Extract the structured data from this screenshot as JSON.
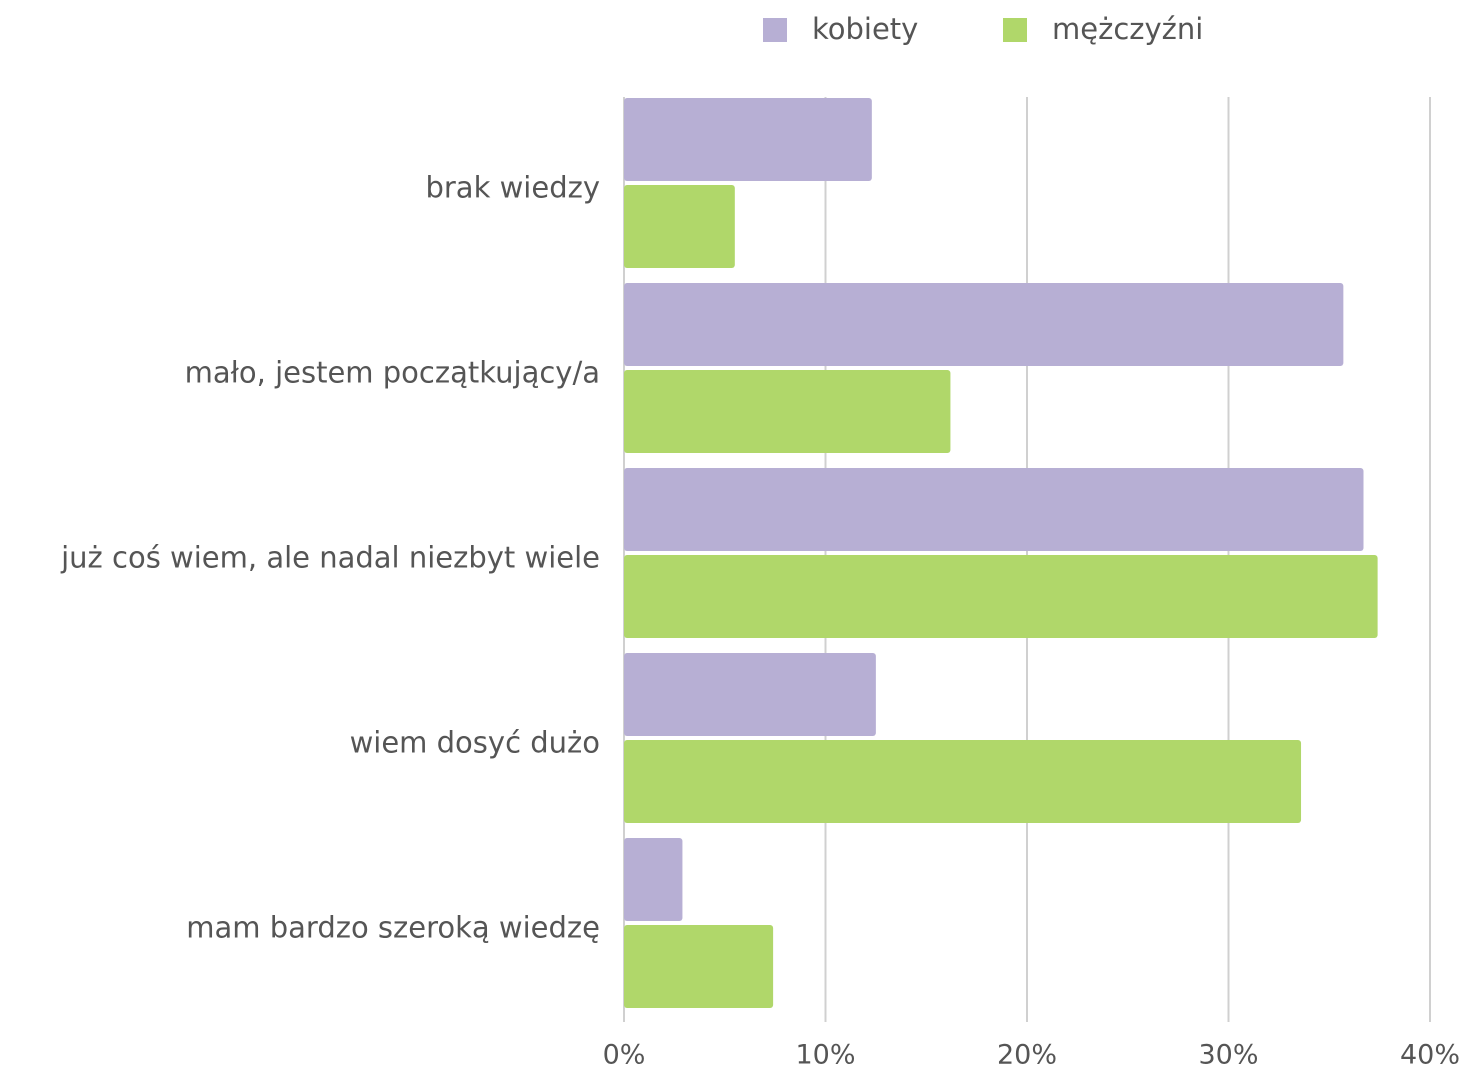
{
  "chart_data": {
    "type": "bar",
    "orientation": "horizontal",
    "categories": [
      "brak wiedzy",
      "mało, jestem początkujący/a",
      "już coś wiem, ale nadal niezbyt wiele",
      "wiem dosyć dużo",
      "mam bardzo szeroką wiedzę"
    ],
    "series": [
      {
        "name": "kobiety",
        "color": "#b7afd4",
        "values": [
          12.3,
          35.7,
          36.7,
          12.5,
          2.9
        ]
      },
      {
        "name": "mężczyźni",
        "color": "#b0d76a",
        "values": [
          5.5,
          16.2,
          37.4,
          33.6,
          7.4
        ]
      }
    ],
    "xlim": [
      0,
      40
    ],
    "xticks": [
      {
        "value": 0,
        "label": "0%"
      },
      {
        "value": 10,
        "label": "10%"
      },
      {
        "value": 20,
        "label": "20%"
      },
      {
        "value": 30,
        "label": "30%"
      },
      {
        "value": 40,
        "label": "40%"
      }
    ],
    "grid": true,
    "legend": "top"
  }
}
